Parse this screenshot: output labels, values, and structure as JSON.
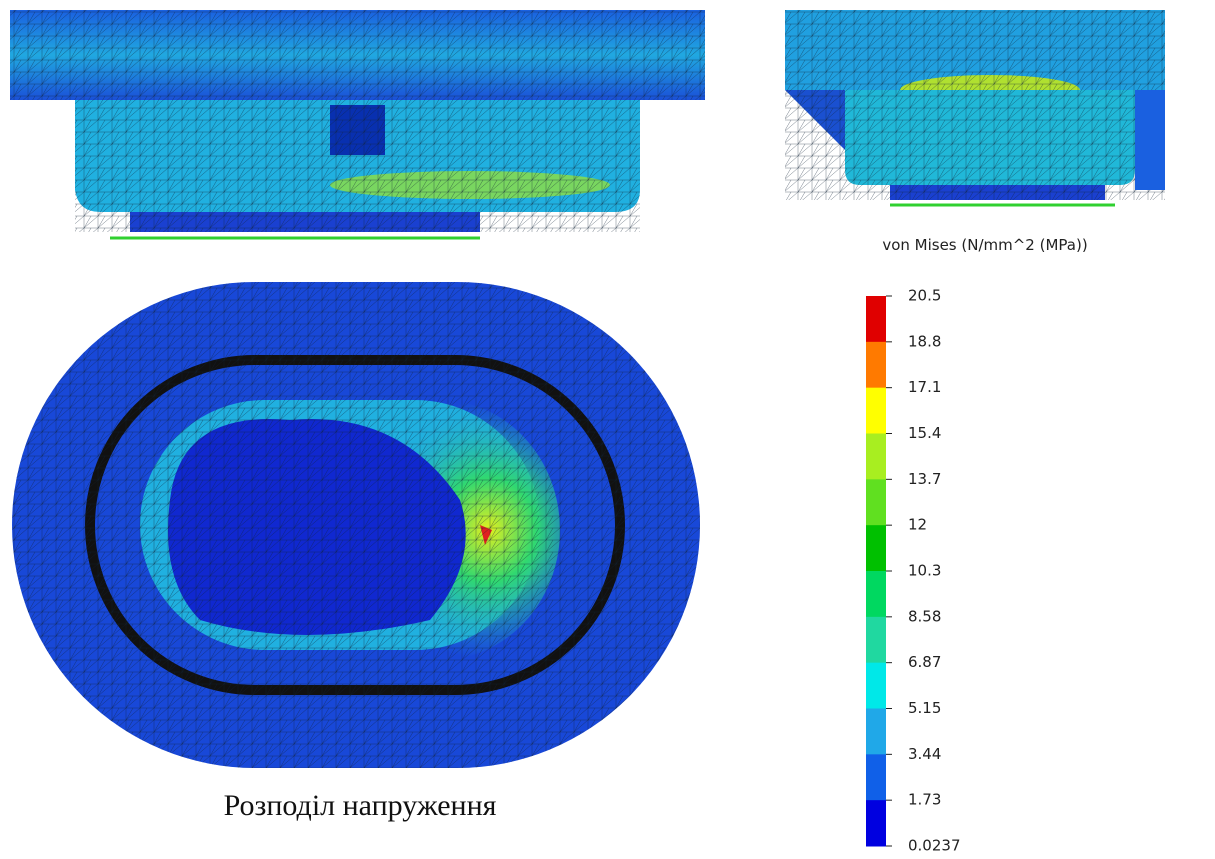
{
  "legend": {
    "title": "von Mises (N/mm^2 (MPa))",
    "ticks": [
      20.5,
      18.8,
      17.1,
      15.4,
      13.7,
      12,
      10.3,
      8.58,
      6.87,
      5.15,
      3.44,
      1.73,
      0.0237
    ]
  },
  "caption": "Розподіл напруження"
}
